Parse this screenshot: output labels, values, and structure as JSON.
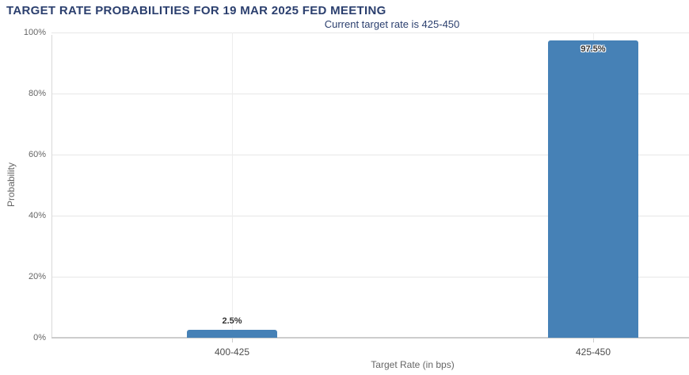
{
  "chart_data": {
    "type": "bar",
    "title": "TARGET RATE PROBABILITIES FOR 19 MAR 2025 FED MEETING",
    "subtitle": "Current target rate is 425-450",
    "xlabel": "Target Rate (in bps)",
    "ylabel": "Probability",
    "categories": [
      "400-425",
      "425-450"
    ],
    "values": [
      2.5,
      97.5
    ],
    "data_labels": [
      "2.5%",
      "97.5%"
    ],
    "ytick_values": [
      0,
      20,
      40,
      60,
      80,
      100
    ],
    "ytick_labels": [
      "0%",
      "20%",
      "40%",
      "60%",
      "80%",
      "100%"
    ],
    "ylim": [
      0,
      100
    ],
    "grid": true,
    "legend": "none",
    "colors": {
      "bar": "#4681b6",
      "title": "#2b3f6e",
      "subtitle": "#2b3f6e",
      "axis_text": "#666666",
      "category_text": "#4d4d4d",
      "gridline": "#e7e7e7",
      "axis_line": "#cdcdcd",
      "data_label": "#333333"
    }
  }
}
